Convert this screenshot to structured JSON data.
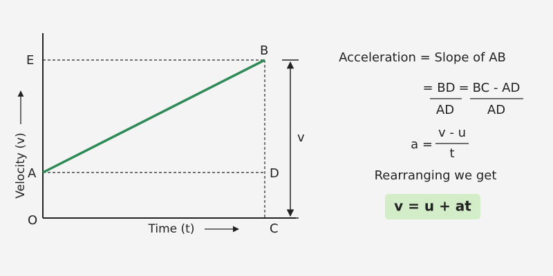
{
  "graph": {
    "y_axis_label": "Velocity (v)",
    "x_axis_label": "Time (t)",
    "points": {
      "O": "O",
      "A": "A",
      "E": "E",
      "B": "B",
      "D": "D",
      "C": "C"
    },
    "height_label": "v"
  },
  "equations": {
    "line1": "Acceleration = Slope of AB",
    "line2": {
      "lead": "= BD",
      "denominator1": "AD",
      "equals": "=",
      "numerator2": "BC - AD",
      "denominator2": "AD"
    },
    "line3": {
      "lead": "a =",
      "numerator": "v - u",
      "denominator": "t"
    },
    "line4": "Rearranging we get",
    "result": "v = u + at"
  }
}
